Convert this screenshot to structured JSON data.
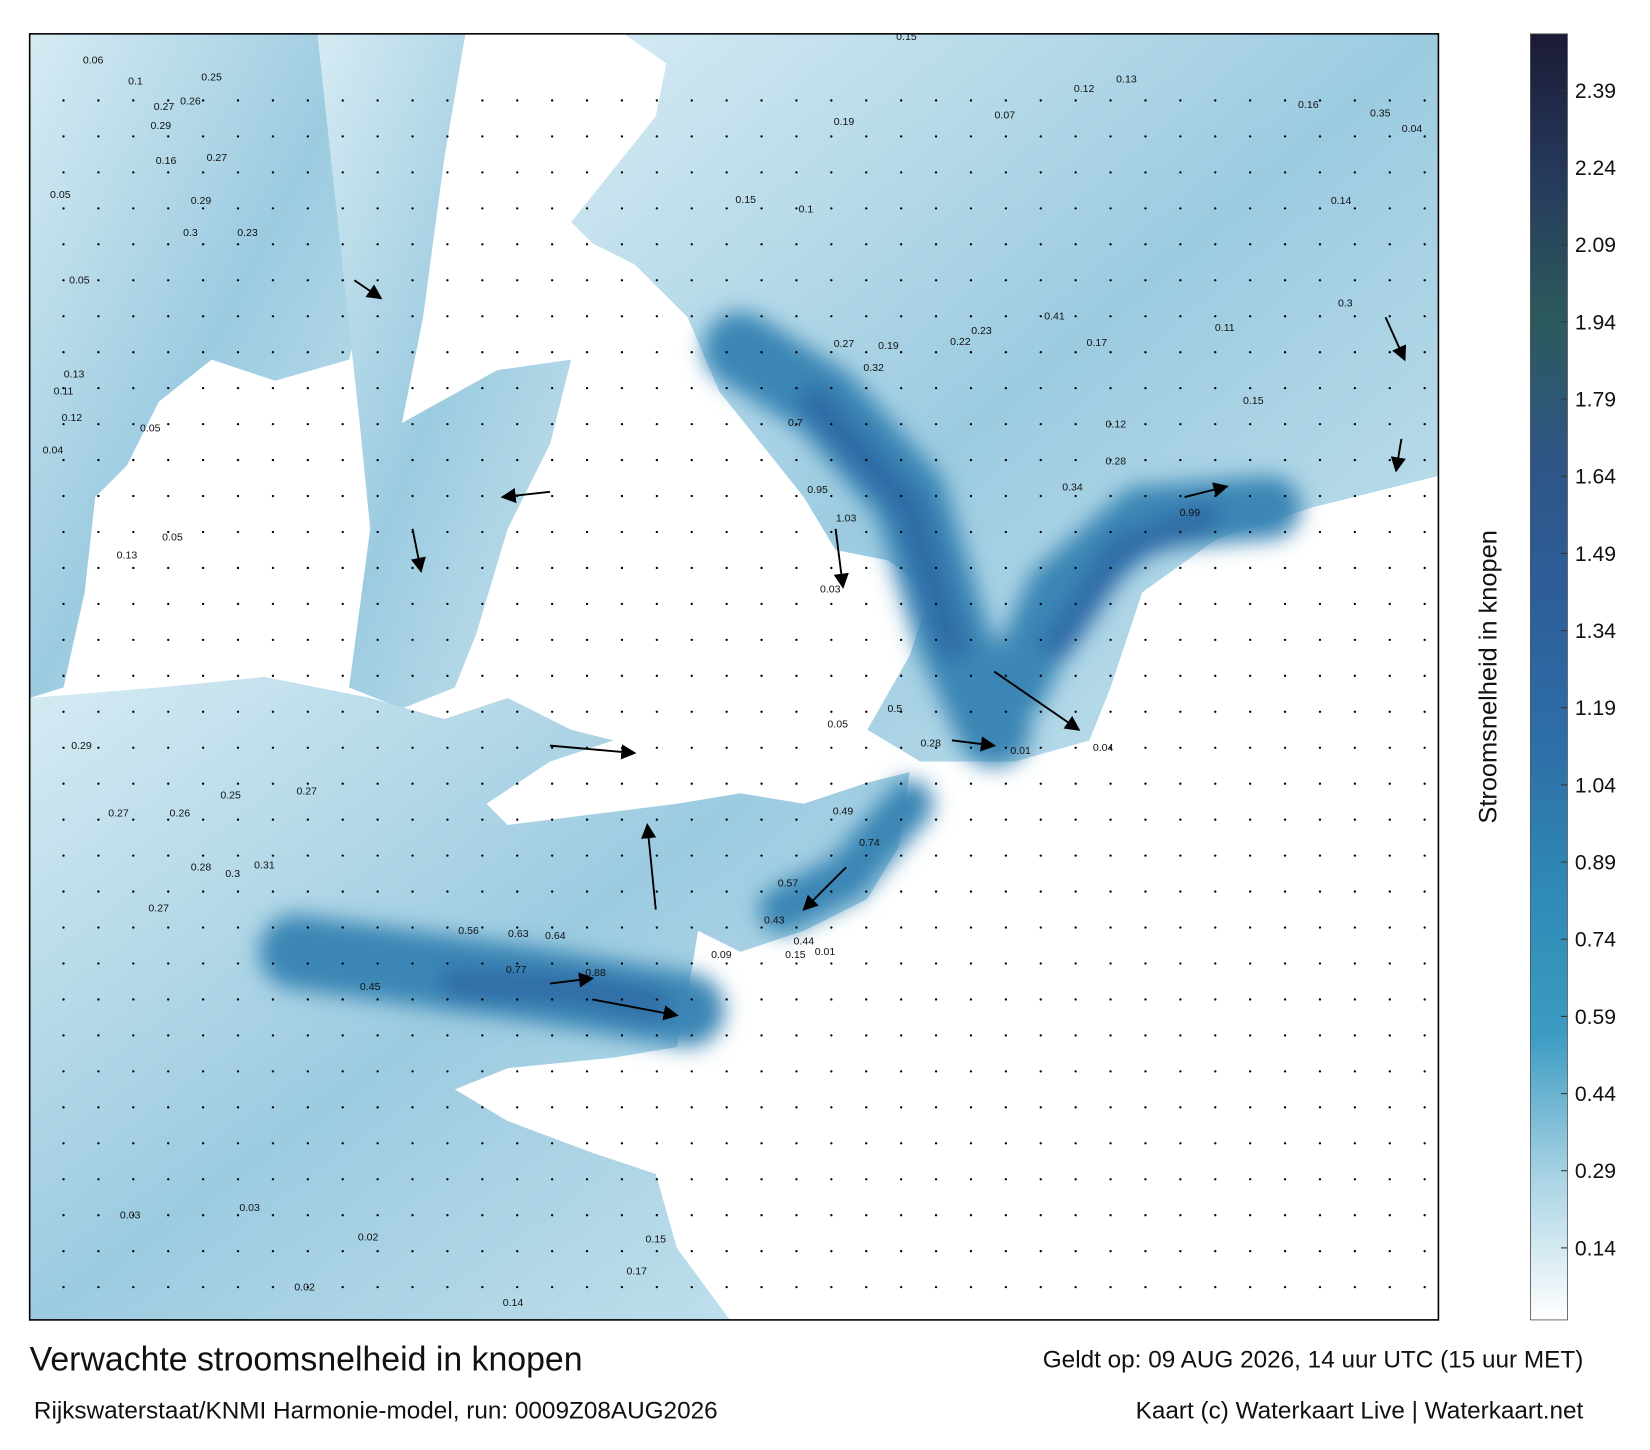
{
  "title": "Verwachte stroomsnelheid in knopen",
  "subtitle": "Rijkswaterstaat/KNMI Harmonie-model, run: 0009Z08AUG2026",
  "valid_time": "Geldt op: 09 AUG 2026, 14 uur UTC (15 uur MET)",
  "credit": "Kaart (c) Waterkaart Live | Waterkaart.net",
  "colorbar": {
    "label": "Stroomsnelheid in knopen",
    "lim": [
      0,
      2.5
    ],
    "ticks": [
      0.14,
      0.29,
      0.44,
      0.59,
      0.74,
      0.89,
      1.04,
      1.19,
      1.34,
      1.49,
      1.64,
      1.79,
      1.94,
      2.09,
      2.24,
      2.39
    ],
    "colors": [
      "#ffffff",
      "#a8d3e4",
      "#3c9bc2",
      "#2f8ab5",
      "#2d6fa8",
      "#2d5f9c",
      "#2e5586",
      "#2c5a5c",
      "#263a5c",
      "#1a1a35"
    ]
  },
  "speed_labels": [
    0.06,
    0.1,
    0.25,
    0.27,
    0.26,
    0.29,
    0.16,
    0.27,
    0.05,
    0.29,
    0.3,
    0.23,
    0.05,
    0.13,
    0.11,
    0.05,
    0.04,
    0.12,
    0.13,
    0.05,
    0.29,
    0.27,
    0.26,
    0.25,
    0.27,
    0.28,
    0.3,
    0.31,
    0.27,
    0.56,
    0.63,
    0.64,
    0.88,
    0.77,
    0.45,
    0.03,
    0.03,
    0.02,
    0.02,
    0.14,
    0.17,
    0.15,
    0.15,
    0.07,
    0.12,
    0.13,
    0.19,
    0.1,
    0.15,
    0.27,
    0.32,
    0.19,
    0.22,
    0.23,
    0.41,
    0.17,
    0.11,
    0.15,
    0.12,
    0.28,
    0.34,
    0.99,
    1.03,
    0.95,
    0.7,
    0.5,
    0.28,
    0.01,
    0.04,
    0.03,
    0.05,
    0.49,
    0.74,
    0.57,
    0.43,
    0.44,
    0.15,
    0.01,
    0.09,
    0.16,
    0.35,
    0.04,
    0.14,
    0.3
  ]
}
